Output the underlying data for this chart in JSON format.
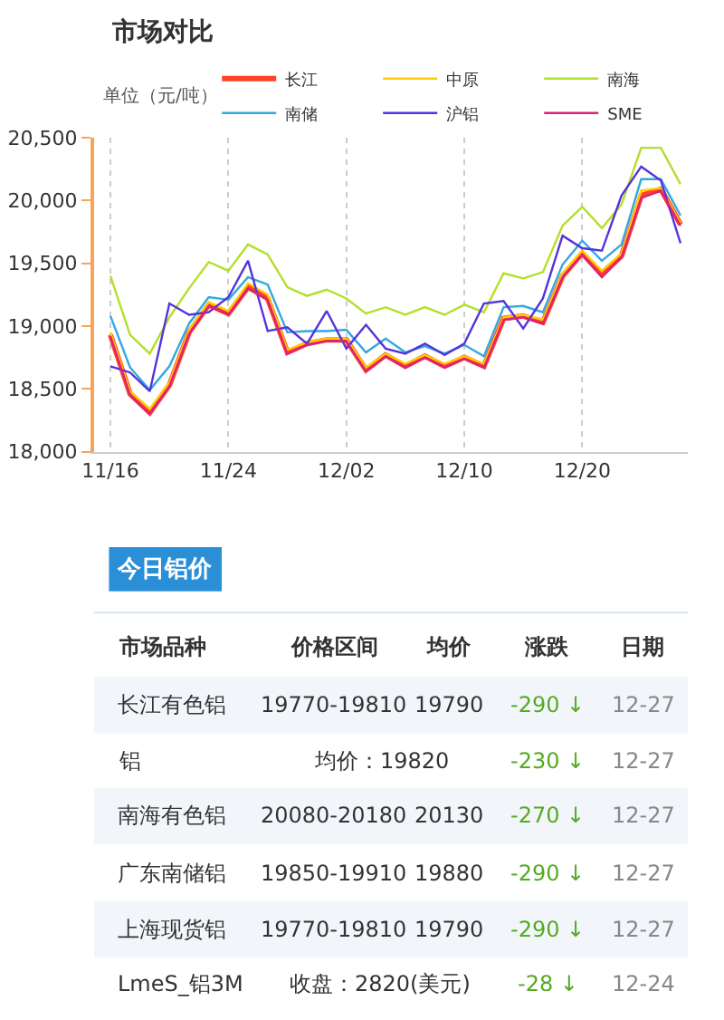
{
  "chart_data": {
    "type": "line",
    "title": "市场对比",
    "ylabel": "单位（元/吨）",
    "subtitle": "今日铝价",
    "categories": [
      "11/16",
      null,
      null,
      null,
      null,
      null,
      "11/24",
      null,
      null,
      null,
      null,
      null,
      "12/02",
      null,
      null,
      null,
      null,
      null,
      "12/10",
      null,
      null,
      null,
      null,
      null,
      "12/20",
      null,
      null,
      null,
      null,
      null
    ],
    "ylim": [
      18000,
      20500
    ],
    "yticks": [
      {
        "value": 18000,
        "label": "18,000"
      },
      {
        "value": 18500,
        "label": "18,500"
      },
      {
        "value": 19000,
        "label": "19,000"
      },
      {
        "value": 19500,
        "label": "19,500"
      },
      {
        "value": 20000,
        "label": "20,000"
      },
      {
        "value": 20500,
        "label": "20,500"
      }
    ],
    "grid": "x",
    "legend": "top",
    "marker": "none",
    "line_style": "solid",
    "series": [
      {
        "name": "长江",
        "color": "#ff4422",
        "values": [
          18930,
          18460,
          18310,
          18530,
          18950,
          19170,
          19100,
          19310,
          19220,
          18790,
          18860,
          18890,
          18890,
          18650,
          18770,
          18680,
          18760,
          18680,
          18750,
          18680,
          19060,
          19080,
          19030,
          19400,
          19580,
          19410,
          19560,
          20040,
          20090,
          19810
        ]
      },
      {
        "name": "中原",
        "color": "#ffcc00",
        "values": [
          18950,
          18480,
          18340,
          18550,
          18970,
          19190,
          19120,
          19340,
          19250,
          18810,
          18870,
          18900,
          18900,
          18670,
          18780,
          18700,
          18770,
          18700,
          18760,
          18700,
          19070,
          19090,
          19050,
          19420,
          19600,
          19440,
          19580,
          20080,
          20100,
          19820
        ]
      },
      {
        "name": "南海",
        "color": "#b3e02a",
        "values": [
          19400,
          18930,
          18780,
          19070,
          19300,
          19510,
          19440,
          19650,
          19570,
          19310,
          19240,
          19290,
          19220,
          19100,
          19150,
          19090,
          19150,
          19090,
          19170,
          19110,
          19420,
          19380,
          19430,
          19800,
          19950,
          19780,
          19970,
          20420,
          20420,
          20130
        ]
      },
      {
        "name": "南储",
        "color": "#33a8e0",
        "values": [
          19080,
          18670,
          18490,
          18680,
          19020,
          19230,
          19210,
          19390,
          19330,
          18950,
          18960,
          18960,
          18970,
          18790,
          18900,
          18790,
          18840,
          18780,
          18850,
          18760,
          19150,
          19160,
          19110,
          19490,
          19680,
          19520,
          19650,
          20170,
          20170,
          19880
        ]
      },
      {
        "name": "沪铝",
        "color": "#5533dd",
        "values": [
          18680,
          18630,
          18480,
          19180,
          19090,
          19110,
          19230,
          19520,
          18960,
          18990,
          18860,
          19120,
          18820,
          19010,
          18820,
          18780,
          18860,
          18770,
          18860,
          19180,
          19200,
          18980,
          19220,
          19720,
          19620,
          19600,
          20040,
          20270,
          20160,
          19660
        ]
      },
      {
        "name": "SME",
        "color": "#dd2277",
        "values": [
          18920,
          18450,
          18300,
          18520,
          18940,
          19160,
          19090,
          19300,
          19210,
          18780,
          18850,
          18880,
          18880,
          18640,
          18760,
          18670,
          18750,
          18670,
          18740,
          18670,
          19050,
          19070,
          19020,
          19390,
          19570,
          19390,
          19550,
          20020,
          20080,
          19800
        ]
      }
    ],
    "annotations": [
      "市场品种",
      "价格区间",
      "均价",
      "涨跌",
      "日期",
      "长江有色铝",
      "19770-19810",
      "19790",
      "-290 ↓",
      "12-27",
      "铝",
      "均价：19820",
      "-230 ↓",
      "12-27",
      "南海有色铝",
      "20080-20180",
      "20130",
      "-270 ↓",
      "12-27",
      "广东南储铝",
      "19850-19910",
      "19880",
      "-290 ↓",
      "12-27",
      "上海现货铝",
      "19770-19810",
      "19790",
      "-290 ↓",
      "12-27",
      "LmeS_铝3M",
      "收盘：2820(美元)",
      "-28 ↓",
      "12-24"
    ]
  }
}
